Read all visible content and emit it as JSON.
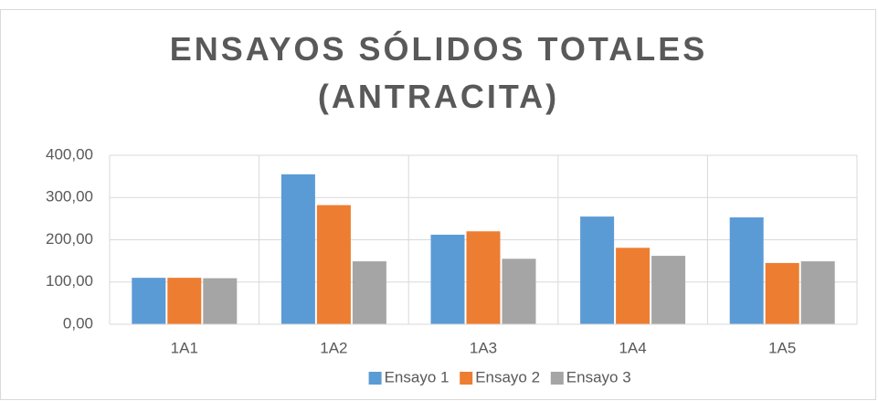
{
  "chart_data": {
    "type": "bar",
    "title": "ENSAYOS SÓLIDOS TOTALES (ANTRACITA)",
    "categories": [
      "1A1",
      "1A2",
      "1A3",
      "1A4",
      "1A5"
    ],
    "series": [
      {
        "name": "Ensayo 1",
        "color": "#5b9bd5",
        "values": [
          110,
          355,
          212,
          255,
          253
        ]
      },
      {
        "name": "Ensayo 2",
        "color": "#ed7d31",
        "values": [
          110,
          282,
          220,
          181,
          145
        ]
      },
      {
        "name": "Ensayo 3",
        "color": "#a5a5a5",
        "values": [
          109,
          149,
          155,
          162,
          149
        ]
      }
    ],
    "ylim": [
      0,
      400
    ],
    "yticks": [
      {
        "value": 0,
        "label": "0,00"
      },
      {
        "value": 100,
        "label": "100,00"
      },
      {
        "value": 200,
        "label": "200,00"
      },
      {
        "value": 300,
        "label": "300,00"
      },
      {
        "value": 400,
        "label": "400,00"
      }
    ],
    "grid": true,
    "legend": "bottom"
  }
}
